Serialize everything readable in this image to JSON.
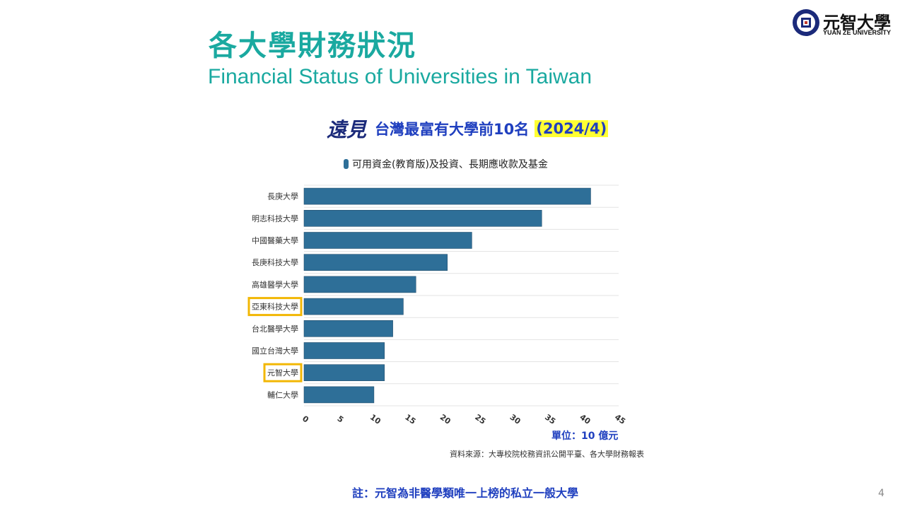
{
  "slide": {
    "title_zh": "各大學財務狀況",
    "title_en": "Financial Status of Universities in Taiwan",
    "page_number": "4"
  },
  "logo": {
    "name_zh": "元智大學",
    "name_en": "YUAN ZE UNIVERSITY"
  },
  "chart_header": {
    "brand": "遠見",
    "text": "台灣最富有大學前10名",
    "date": "(2024/4)",
    "highlight_color": "#ffff33"
  },
  "chart_data": {
    "type": "bar",
    "orientation": "horizontal",
    "categories": [
      "長庚大學",
      "明志科技大學",
      "中國醫藥大學",
      "長庚科技大學",
      "高雄醫學大學",
      "亞東科技大學",
      "台北醫學大學",
      "國立台灣大學",
      "元智大學",
      "輔仁大學"
    ],
    "series": [
      {
        "name": "可用資金(教育版)及投資、長期應收款及基金",
        "values": [
          41,
          34,
          24,
          20.5,
          16,
          14.2,
          12.7,
          11.5,
          11.5,
          10
        ],
        "color": "#2e6f98"
      }
    ],
    "xticks": [
      "0",
      "5",
      "10",
      "15",
      "20",
      "25",
      "30",
      "35",
      "40",
      "45"
    ],
    "xlim": [
      0,
      45
    ],
    "grid": true,
    "legend_position": "top",
    "highlighted_categories": [
      "亞東科技大學",
      "元智大學"
    ],
    "highlight_color": "#f2b705"
  },
  "unit": "單位：10 億元",
  "source": "資料來源：大專校院校務資訊公開平臺、各大學財務報表",
  "note": "註：元智為非醫學類唯一上榜的私立一般大學"
}
